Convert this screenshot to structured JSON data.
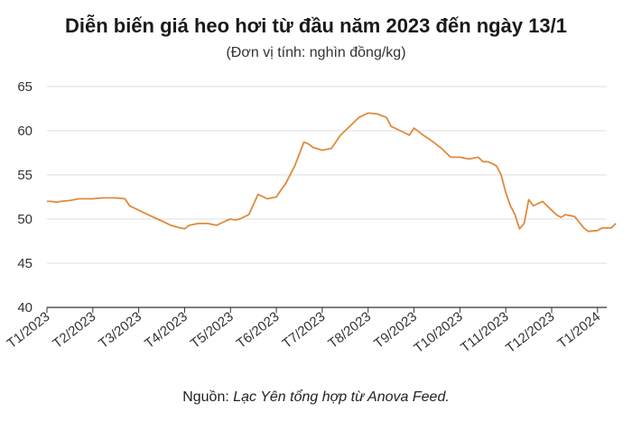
{
  "chart_data": {
    "type": "line",
    "title": "Diễn biến giá heo hơi từ đầu năm 2023 đến ngày 13/1",
    "subtitle": "(Đơn vị tính: nghìn đồng/kg)",
    "source_label": "Nguồn:",
    "source_name": "Lạc Yên tổng hợp từ Anova Feed.",
    "ylim": [
      40,
      65
    ],
    "yticks": [
      "40",
      "45",
      "50",
      "55",
      "60",
      "65"
    ],
    "xticks": [
      "T1/2023",
      "T2/2023",
      "T3/2023",
      "T4/2023",
      "T5/2023",
      "T6/2023",
      "T7/2023",
      "T8/2023",
      "T9/2023",
      "T10/2023",
      "T11/2023",
      "T12/2023",
      "T1/2024"
    ],
    "grid": true,
    "line_color": "#e08a3c",
    "x_unit": "months since T1/2023",
    "x": [
      0.0,
      0.1,
      0.2,
      0.3,
      0.5,
      0.7,
      0.9,
      1.0,
      1.2,
      1.5,
      1.7,
      1.8,
      2.0,
      2.2,
      2.5,
      2.7,
      2.9,
      3.0,
      3.1,
      3.3,
      3.5,
      3.7,
      3.9,
      4.0,
      4.1,
      4.2,
      4.4,
      4.6,
      4.8,
      5.0,
      5.1,
      5.2,
      5.4,
      5.6,
      5.7,
      5.8,
      6.0,
      6.2,
      6.4,
      6.5,
      6.6,
      6.8,
      7.0,
      7.2,
      7.4,
      7.5,
      7.7,
      7.9,
      8.0,
      8.2,
      8.4,
      8.6,
      8.8,
      9.0,
      9.2,
      9.4,
      9.5,
      9.6,
      9.7,
      9.8,
      9.9,
      10.0,
      10.1,
      10.2,
      10.3,
      10.4,
      10.5,
      10.6,
      10.8,
      11.0,
      11.1,
      11.2,
      11.3,
      11.5,
      11.7,
      11.8,
      12.0,
      12.1,
      12.3,
      12.4
    ],
    "y": [
      52.0,
      52.0,
      51.9,
      52.0,
      52.1,
      52.3,
      52.3,
      52.3,
      52.4,
      52.4,
      52.3,
      51.5,
      51.0,
      50.5,
      49.8,
      49.3,
      49.0,
      48.9,
      49.3,
      49.5,
      49.5,
      49.3,
      49.8,
      50.0,
      49.9,
      50.0,
      50.5,
      52.8,
      52.3,
      52.5,
      53.3,
      54.0,
      56.0,
      58.7,
      58.5,
      58.1,
      57.8,
      58.0,
      59.5,
      60.0,
      60.5,
      61.5,
      62.0,
      61.9,
      61.5,
      60.5,
      60.0,
      59.5,
      60.3,
      59.5,
      58.8,
      58.0,
      57.0,
      57.0,
      56.8,
      57.0,
      56.5,
      56.5,
      56.3,
      56.0,
      55.0,
      53.0,
      51.5,
      50.5,
      48.9,
      49.5,
      52.2,
      51.5,
      52.0,
      51.0,
      50.5,
      50.2,
      50.5,
      50.3,
      49.0,
      48.6,
      48.7,
      49.0,
      49.0,
      49.5
    ]
  }
}
